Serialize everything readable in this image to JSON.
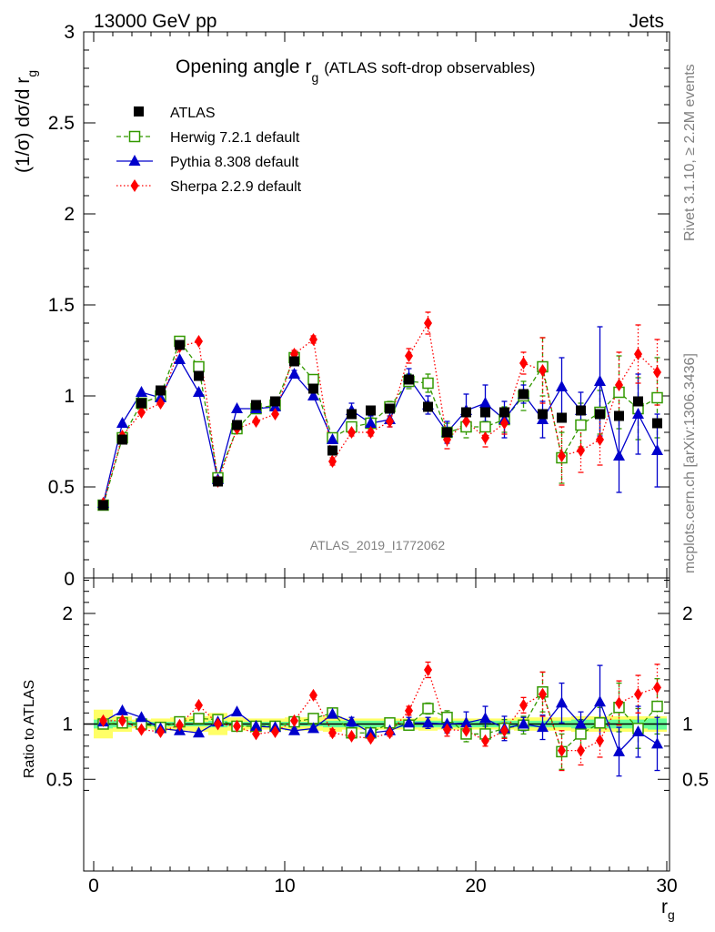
{
  "header": {
    "energy_label": "13000 GeV pp",
    "category_label": "Jets"
  },
  "side_notes": {
    "rivet": "Rivet 3.1.10, ≥ 2.2M events",
    "mcplots": "mcplots.cern.ch [arXiv:1306.3436]"
  },
  "chart_data": [
    {
      "type": "scatter",
      "title": "Opening angle r",
      "title_sub": "g",
      "title_suffix": "(ATLAS soft-drop observables)",
      "ylabel": "(1/σ) dσ/d r",
      "ylabel_sub": "g",
      "analysis_id": "ATLAS_2019_I1772062",
      "ylim": [
        0,
        3
      ],
      "yticks": [
        "0.5",
        "1",
        "1.5",
        "2",
        "2.5",
        "3"
      ],
      "y0_label": "0",
      "legend_position": "top-left",
      "x": [
        0.5,
        1.5,
        2.5,
        3.5,
        4.5,
        5.5,
        6.5,
        7.5,
        8.5,
        9.5,
        10.5,
        11.5,
        12.5,
        13.5,
        14.5,
        15.5,
        16.5,
        17.5,
        18.5,
        19.5,
        20.5,
        21.5,
        22.5,
        23.5,
        24.5,
        25.5,
        26.5,
        27.5,
        28.5,
        29.5
      ],
      "series": [
        {
          "name": "ATLAS",
          "color": "#000000",
          "marker": "filled-square",
          "line": "none",
          "values": [
            0.4,
            0.76,
            0.96,
            1.03,
            1.28,
            1.11,
            0.53,
            0.84,
            0.95,
            0.97,
            1.19,
            1.04,
            0.7,
            0.9,
            0.92,
            0.93,
            1.09,
            0.94,
            0.8,
            0.91,
            0.91,
            0.91,
            1.01,
            0.9,
            0.88,
            0.92,
            0.9,
            0.89,
            0.97,
            0.85
          ]
        },
        {
          "name": "Herwig 7.2.1 default",
          "color": "#339900",
          "marker": "open-square",
          "line": "dashed",
          "values": [
            0.4,
            0.77,
            0.96,
            1.0,
            1.3,
            1.16,
            0.55,
            0.82,
            0.93,
            0.95,
            1.21,
            1.09,
            0.77,
            0.83,
            0.85,
            0.94,
            1.08,
            1.07,
            0.8,
            0.83,
            0.83,
            0.87,
            1.0,
            1.16,
            0.66,
            0.84,
            0.91,
            1.02,
            0.93,
            0.99
          ],
          "err": [
            0.01,
            0.01,
            0.01,
            0.01,
            0.01,
            0.01,
            0.01,
            0.01,
            0.01,
            0.01,
            0.02,
            0.02,
            0.02,
            0.02,
            0.03,
            0.03,
            0.04,
            0.05,
            0.05,
            0.06,
            0.06,
            0.07,
            0.08,
            0.16,
            0.14,
            0.12,
            0.12,
            0.2,
            0.17,
            0.22
          ]
        },
        {
          "name": "Pythia 8.308 default",
          "color": "#0000cc",
          "marker": "filled-triangle",
          "line": "solid",
          "values": [
            0.41,
            0.85,
            1.02,
            0.99,
            1.2,
            1.02,
            0.54,
            0.93,
            0.93,
            0.94,
            1.12,
            1.0,
            0.76,
            0.92,
            0.85,
            0.87,
            1.1,
            0.95,
            0.8,
            0.92,
            0.96,
            0.87,
            1.01,
            0.87,
            1.05,
            0.92,
            1.08,
            0.67,
            0.9,
            0.7
          ],
          "err": [
            0.01,
            0.01,
            0.01,
            0.01,
            0.01,
            0.01,
            0.01,
            0.01,
            0.01,
            0.01,
            0.02,
            0.02,
            0.02,
            0.04,
            0.04,
            0.04,
            0.05,
            0.05,
            0.06,
            0.09,
            0.1,
            0.1,
            0.05,
            0.1,
            0.16,
            0.1,
            0.3,
            0.2,
            0.22,
            0.2
          ]
        },
        {
          "name": "Sherpa 2.2.9 default",
          "color": "#ff0000",
          "marker": "filled-diamond",
          "line": "dotted",
          "values": [
            0.41,
            0.78,
            0.91,
            0.96,
            1.27,
            1.3,
            0.53,
            0.82,
            0.86,
            0.9,
            1.23,
            1.31,
            0.64,
            0.8,
            0.8,
            0.86,
            1.22,
            1.4,
            0.76,
            0.86,
            0.77,
            0.85,
            1.18,
            1.14,
            0.67,
            0.7,
            0.76,
            1.06,
            1.23,
            1.13
          ],
          "err": [
            0.01,
            0.01,
            0.01,
            0.01,
            0.01,
            0.01,
            0.01,
            0.01,
            0.01,
            0.01,
            0.02,
            0.02,
            0.02,
            0.02,
            0.02,
            0.03,
            0.04,
            0.06,
            0.05,
            0.05,
            0.05,
            0.06,
            0.06,
            0.18,
            0.16,
            0.12,
            0.14,
            0.18,
            0.16,
            0.18
          ]
        }
      ]
    },
    {
      "type": "scatter",
      "ylabel": "Ratio to ATLAS",
      "xlabel": "r",
      "xlabel_sub": "g",
      "xlim": [
        0,
        30
      ],
      "xticks": [
        "0",
        "10",
        "20",
        "30"
      ],
      "ylim": [
        0.3,
        2.3
      ],
      "yticks": [
        "0.5",
        "1",
        "2"
      ],
      "band_inner_color": "#66ff99",
      "band_outer_color": "#ffff66",
      "band_inner": [
        0.04,
        0.03,
        0.02,
        0.02,
        0.02,
        0.02,
        0.03,
        0.02,
        0.02,
        0.02,
        0.02,
        0.02,
        0.03,
        0.03,
        0.03,
        0.03,
        0.03,
        0.03,
        0.03,
        0.03,
        0.03,
        0.03,
        0.03,
        0.03,
        0.03,
        0.04,
        0.04,
        0.04,
        0.04,
        0.05
      ],
      "band_outer": [
        0.13,
        0.07,
        0.04,
        0.05,
        0.06,
        0.07,
        0.1,
        0.06,
        0.05,
        0.05,
        0.06,
        0.06,
        0.07,
        0.05,
        0.05,
        0.05,
        0.05,
        0.06,
        0.05,
        0.05,
        0.05,
        0.05,
        0.06,
        0.06,
        0.06,
        0.07,
        0.07,
        0.07,
        0.07,
        0.07
      ],
      "series": [
        {
          "name": "Herwig 7.2.1 default",
          "color": "#339900",
          "values": [
            1.0,
            1.01,
            1.0,
            0.97,
            1.02,
            1.05,
            1.04,
            0.98,
            0.98,
            0.98,
            1.02,
            1.05,
            1.1,
            0.92,
            0.92,
            1.01,
            0.99,
            1.14,
            1.06,
            0.91,
            0.91,
            0.96,
            0.99,
            1.29,
            0.75,
            0.91,
            1.01,
            1.15,
            0.96,
            1.16
          ],
          "err": [
            0.01,
            0.01,
            0.01,
            0.01,
            0.01,
            0.01,
            0.01,
            0.01,
            0.01,
            0.01,
            0.02,
            0.02,
            0.03,
            0.03,
            0.03,
            0.03,
            0.04,
            0.05,
            0.06,
            0.07,
            0.07,
            0.08,
            0.08,
            0.18,
            0.16,
            0.13,
            0.14,
            0.22,
            0.18,
            0.25
          ]
        },
        {
          "name": "Pythia 8.308 default",
          "color": "#0000cc",
          "values": [
            1.02,
            1.12,
            1.06,
            0.96,
            0.94,
            0.92,
            1.02,
            1.11,
            0.98,
            0.97,
            0.94,
            0.96,
            1.09,
            1.02,
            0.92,
            0.94,
            1.01,
            1.01,
            1.0,
            1.01,
            1.05,
            0.96,
            1.0,
            0.97,
            1.19,
            1.0,
            1.2,
            0.75,
            0.93,
            0.82
          ],
          "err": [
            0.01,
            0.01,
            0.01,
            0.01,
            0.01,
            0.01,
            0.01,
            0.01,
            0.01,
            0.01,
            0.02,
            0.02,
            0.03,
            0.04,
            0.04,
            0.04,
            0.05,
            0.05,
            0.08,
            0.1,
            0.11,
            0.11,
            0.06,
            0.11,
            0.18,
            0.11,
            0.33,
            0.22,
            0.23,
            0.24
          ]
        },
        {
          "name": "Sherpa 2.2.9 default",
          "color": "#ff0000",
          "values": [
            1.03,
            1.03,
            0.95,
            0.93,
            0.99,
            1.17,
            1.0,
            0.98,
            0.91,
            0.93,
            1.03,
            1.26,
            0.92,
            0.89,
            0.87,
            0.92,
            1.12,
            1.49,
            0.95,
            0.94,
            0.85,
            0.94,
            1.17,
            1.27,
            0.76,
            0.76,
            0.85,
            1.19,
            1.27,
            1.33
          ],
          "err": [
            0.01,
            0.01,
            0.01,
            0.01,
            0.01,
            0.01,
            0.01,
            0.01,
            0.01,
            0.01,
            0.02,
            0.02,
            0.03,
            0.02,
            0.02,
            0.03,
            0.04,
            0.07,
            0.06,
            0.05,
            0.05,
            0.07,
            0.07,
            0.2,
            0.18,
            0.13,
            0.15,
            0.2,
            0.17,
            0.21
          ]
        }
      ]
    }
  ]
}
